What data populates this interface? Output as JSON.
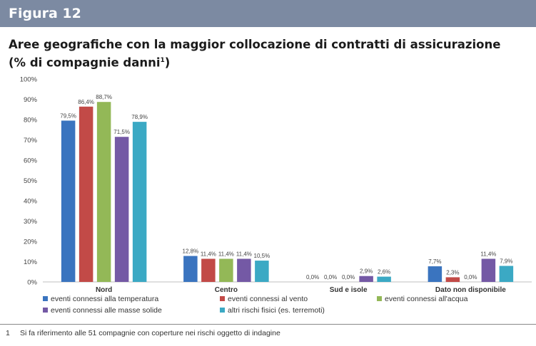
{
  "header": {
    "label": "Figura 12"
  },
  "title": {
    "line1": "Aree geografiche con la maggior collocazione di contratti di assicurazione",
    "line2": "(% di compagnie danni",
    "sup": "1",
    "line2_end": ")"
  },
  "chart_data": {
    "type": "bar",
    "categories": [
      "Nord",
      "Centro",
      "Sud e isole",
      "Dato non disponibile"
    ],
    "series": [
      {
        "name": "eventi connessi alla temperatura",
        "color": "#3a74bf",
        "values": [
          79.5,
          12.8,
          0.0,
          7.7
        ],
        "labels": [
          "79,5%",
          "12,8%",
          "0,0%",
          "7,7%"
        ]
      },
      {
        "name": "eventi connessi al vento",
        "color": "#c24a47",
        "values": [
          86.4,
          11.4,
          0.0,
          2.3
        ],
        "labels": [
          "86,4%",
          "11,4%",
          "0,0%",
          "2,3%"
        ]
      },
      {
        "name": "eventi connessi all'acqua",
        "color": "#93b857",
        "values": [
          88.7,
          11.4,
          0.0,
          0.0
        ],
        "labels": [
          "88,7%",
          "11,4%",
          "0,0%",
          "0,0%"
        ]
      },
      {
        "name": "eventi connessi alle masse solide",
        "color": "#7459a5",
        "values": [
          71.5,
          11.4,
          2.9,
          11.4
        ],
        "labels": [
          "71,5%",
          "11,4%",
          "2,9%",
          "11,4%"
        ]
      },
      {
        "name": "altri rischi fisici (es. terremoti)",
        "color": "#3ba9c4",
        "values": [
          78.9,
          10.5,
          2.6,
          7.9
        ],
        "labels": [
          "78,9%",
          "10,5%",
          "2,6%",
          "7,9%"
        ]
      }
    ],
    "ylim": [
      0,
      100
    ],
    "yticks": [
      "0%",
      "10%",
      "20%",
      "30%",
      "40%",
      "50%",
      "60%",
      "70%",
      "80%",
      "90%",
      "100%"
    ],
    "grid": false,
    "legend_position": "bottom"
  },
  "footnote": {
    "number": "1",
    "text": "Si fa riferimento alle 51 compagnie con coperture nei rischi oggetto di indagine"
  }
}
